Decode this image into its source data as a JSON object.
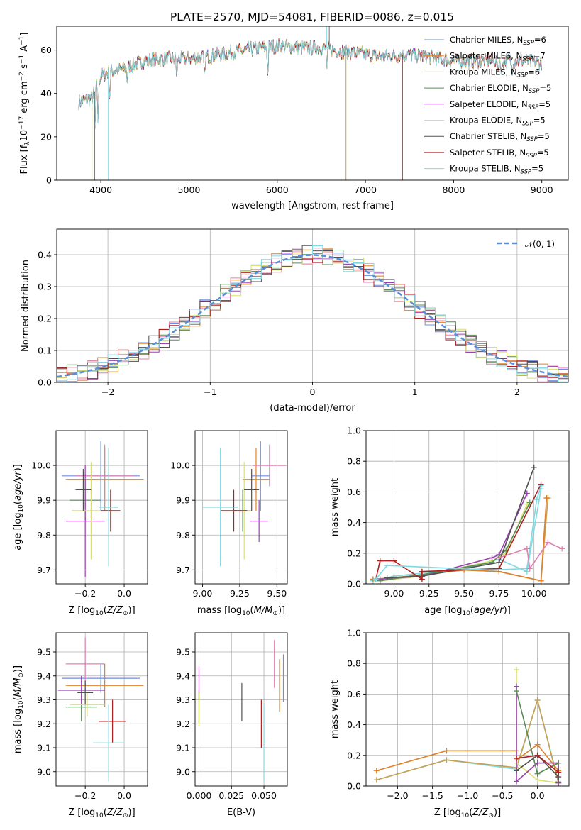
{
  "title": "PLATE=2570, MJD=54081, FIBERID=0086, z=0.015",
  "colors": [
    "#6e8fe0",
    "#e0802a",
    "#c8a050",
    "#5a8a5a",
    "#9a40b0",
    "#d8e070",
    "#505050",
    "#b02020",
    "#80d8e0"
  ],
  "legend_entries": [
    {
      "label": "Chabrier MILES, N",
      "sub": "SSP",
      "suffix": "=6"
    },
    {
      "label": "Salpeter MILES, N",
      "sub": "SSP",
      "suffix": "=7"
    },
    {
      "label": "Kroupa MILES, N",
      "sub": "SSP",
      "suffix": "=6"
    },
    {
      "label": "Chabrier ELODIE, N",
      "sub": "SSP",
      "suffix": "=5"
    },
    {
      "label": "Salpeter ELODIE, N",
      "sub": "SSP",
      "suffix": "=5"
    },
    {
      "label": "Kroupa ELODIE, N",
      "sub": "SSP",
      "suffix": "=5"
    },
    {
      "label": "Chabrier STELIB, N",
      "sub": "SSP",
      "suffix": "=5"
    },
    {
      "label": "Salpeter STELIB, N",
      "sub": "SSP",
      "suffix": "=5"
    },
    {
      "label": "Kroupa STELIB, N",
      "sub": "SSP",
      "suffix": "=5"
    }
  ],
  "chart_data": [
    {
      "type": "line",
      "panel": "spectrum",
      "xlabel": "wavelength [Angstrom, rest frame]",
      "ylabel": "Flux [f_λ10^-17 erg cm^-2 s^-1 A^-1]",
      "xlim": [
        3500,
        9300
      ],
      "ylim": [
        0,
        71
      ],
      "xticks": [
        "4000",
        "5000",
        "6000",
        "7000",
        "8000",
        "9000"
      ],
      "yticks": [
        "0",
        "20",
        "40",
        "60"
      ],
      "continuum": [
        [
          3750,
          36
        ],
        [
          3900,
          38
        ],
        [
          4000,
          48
        ],
        [
          4100,
          50
        ],
        [
          4300,
          52
        ],
        [
          4500,
          55
        ],
        [
          4700,
          56
        ],
        [
          5000,
          56
        ],
        [
          5200,
          57
        ],
        [
          5500,
          59
        ],
        [
          5800,
          61
        ],
        [
          6000,
          62
        ],
        [
          6300,
          61
        ],
        [
          6500,
          61
        ],
        [
          6800,
          59
        ],
        [
          7000,
          58
        ],
        [
          7200,
          57
        ],
        [
          7500,
          58
        ],
        [
          7700,
          57
        ],
        [
          8000,
          55
        ],
        [
          8300,
          55
        ],
        [
          8600,
          55
        ],
        [
          8800,
          55
        ],
        [
          9000,
          54
        ]
      ]
    },
    {
      "type": "line",
      "panel": "residual_histogram",
      "xlabel": "(data-model)/error",
      "ylabel": "Normed distribution",
      "xlim": [
        -2.5,
        2.5
      ],
      "ylim": [
        0,
        0.48
      ],
      "xticks": [
        "−2",
        "−1",
        "0",
        "1",
        "2"
      ],
      "yticks": [
        "0.0",
        "0.1",
        "0.2",
        "0.3",
        "0.4"
      ],
      "legend": "𝒩(0, 1)",
      "gaussian_mean": 0,
      "gaussian_sigma": 1
    },
    {
      "type": "scatter",
      "panel": "age_vs_Z",
      "xlabel": "Z [log10(Z/Z⊙)]",
      "ylabel": "age  [log10(age/yr)]",
      "xlim": [
        -0.35,
        0.12
      ],
      "ylim": [
        9.66,
        10.1
      ],
      "xticks": [
        "−0.2",
        "0.0"
      ],
      "yticks": [
        "9.7",
        "9.8",
        "9.9",
        "10.0"
      ],
      "points": [
        {
          "x": -0.12,
          "y": 9.97,
          "xerr": 0.2,
          "yerr": 0.1
        },
        {
          "x": -0.1,
          "y": 9.96,
          "xerr": 0.2,
          "yerr": 0.09
        },
        {
          "x": -0.1,
          "y": 9.97,
          "xerr": 0.15,
          "yerr": 0.09
        },
        {
          "x": -0.2,
          "y": 9.9,
          "xerr": 0.08,
          "yerr": 0.06
        },
        {
          "x": -0.2,
          "y": 9.84,
          "xerr": 0.1,
          "yerr": 0.16
        },
        {
          "x": -0.17,
          "y": 9.87,
          "xerr": 0.1,
          "yerr": 0.14
        },
        {
          "x": -0.21,
          "y": 9.93,
          "xerr": 0.04,
          "yerr": 0.06
        },
        {
          "x": -0.07,
          "y": 9.87,
          "xerr": 0.05,
          "yerr": 0.06
        },
        {
          "x": -0.08,
          "y": 9.88,
          "xerr": 0.05,
          "yerr": 0.17
        }
      ]
    },
    {
      "type": "scatter",
      "panel": "age_vs_mass",
      "xlabel": "mass [log10(M/M⊙)]",
      "ylabel": "",
      "xlim": [
        8.95,
        9.57
      ],
      "ylim": [
        9.66,
        10.1
      ],
      "xticks": [
        "9.00",
        "9.25",
        "9.50"
      ],
      "yticks": [
        "9.7",
        "9.8",
        "9.9",
        "10.0"
      ],
      "points": [
        {
          "x": 9.39,
          "y": 9.97,
          "xerr": 0.06,
          "yerr": 0.1
        },
        {
          "x": 9.36,
          "y": 9.96,
          "xerr": 0.09,
          "yerr": 0.09
        },
        {
          "x": 9.45,
          "y": 10.0,
          "xerr": 0.11,
          "yerr": 0.06
        },
        {
          "x": 9.27,
          "y": 9.87,
          "xerr": 0.06,
          "yerr": 0.06
        },
        {
          "x": 9.38,
          "y": 9.84,
          "xerr": 0.06,
          "yerr": 0.06
        },
        {
          "x": 9.28,
          "y": 9.87,
          "xerr": 0.05,
          "yerr": 0.14
        },
        {
          "x": 9.33,
          "y": 9.93,
          "xerr": 0.05,
          "yerr": 0.06
        },
        {
          "x": 9.21,
          "y": 9.87,
          "xerr": 0.09,
          "yerr": 0.06
        },
        {
          "x": 9.12,
          "y": 9.88,
          "xerr": 0.12,
          "yerr": 0.17
        }
      ]
    },
    {
      "type": "line",
      "panel": "mass_weight_vs_age",
      "xlabel": "age  [log10(age/yr)]",
      "ylabel": "mass weight",
      "xlim": [
        8.8,
        10.25
      ],
      "ylim": [
        0,
        1.0
      ],
      "xticks": [
        "9.00",
        "9.25",
        "9.50",
        "9.75",
        "10.00"
      ],
      "yticks": [
        "0.0",
        "0.2",
        "0.4",
        "0.6",
        "0.8",
        "1.0"
      ],
      "series": [
        {
          "points": [
            [
              8.85,
              0.02
            ],
            [
              9.0,
              0.05
            ],
            [
              9.5,
              0.1
            ],
            [
              9.75,
              0.16
            ],
            [
              9.95,
              0.08
            ],
            [
              10.05,
              0.62
            ]
          ]
        },
        {
          "points": [
            [
              8.85,
              0.03
            ],
            [
              9.0,
              0.04
            ],
            [
              9.5,
              0.09
            ],
            [
              9.75,
              0.08
            ],
            [
              10.05,
              0.02
            ],
            [
              10.1,
              0.56
            ],
            [
              10.1,
              0.56
            ]
          ]
        },
        {
          "points": [
            [
              8.85,
              0.03
            ],
            [
              9.0,
              0.04
            ],
            [
              9.5,
              0.09
            ],
            [
              9.75,
              0.08
            ],
            [
              10.05,
              0.02
            ],
            [
              10.09,
              0.56
            ]
          ]
        },
        {
          "points": [
            [
              8.9,
              0.02
            ],
            [
              9.2,
              0.05
            ],
            [
              9.7,
              0.15
            ],
            [
              9.8,
              0.2
            ],
            [
              9.95,
              0.52
            ]
          ]
        },
        {
          "points": [
            [
              8.9,
              0.03
            ],
            [
              9.2,
              0.05
            ],
            [
              9.7,
              0.17
            ],
            [
              9.75,
              0.19
            ],
            [
              9.95,
              0.59
            ]
          ]
        },
        {
          "points": [
            [
              8.9,
              0.02
            ],
            [
              9.2,
              0.06
            ],
            [
              9.7,
              0.14
            ],
            [
              9.8,
              0.22
            ],
            [
              9.97,
              0.53
            ]
          ]
        },
        {
          "points": [
            [
              8.95,
              0.04
            ],
            [
              9.2,
              0.05
            ],
            [
              9.75,
              0.14
            ],
            [
              10.0,
              0.76
            ]
          ]
        },
        {
          "points": [
            [
              8.87,
              0.03
            ],
            [
              8.9,
              0.15
            ],
            [
              9.0,
              0.15
            ],
            [
              9.2,
              0.03
            ],
            [
              9.2,
              0.08
            ],
            [
              9.75,
              0.1
            ],
            [
              10.05,
              0.65
            ]
          ]
        },
        {
          "points": [
            [
              8.87,
              0.03
            ],
            [
              8.95,
              0.12
            ],
            [
              9.7,
              0.09
            ],
            [
              9.95,
              0.1
            ],
            [
              10.02,
              0.55
            ],
            [
              10.05,
              0.64
            ]
          ]
        },
        {
          "points": [
            [
              9.75,
              0.17
            ],
            [
              9.95,
              0.23
            ],
            [
              9.97,
              0.1
            ],
            [
              10.1,
              0.27
            ],
            [
              10.2,
              0.23
            ]
          ]
        }
      ]
    },
    {
      "type": "scatter",
      "panel": "mass_vs_Z",
      "xlabel": "Z [log10(Z/Z⊙)]",
      "ylabel": "mass [log10(M/M⊙)]",
      "xlim": [
        -0.35,
        0.12
      ],
      "ylim": [
        8.94,
        9.58
      ],
      "xticks": [
        "−0.2",
        "0.0"
      ],
      "yticks": [
        "9.0",
        "9.1",
        "9.2",
        "9.3",
        "9.4",
        "9.5"
      ],
      "points": [
        {
          "x": -0.12,
          "y": 9.39,
          "xerr": 0.2,
          "yerr": 0.06
        },
        {
          "x": -0.1,
          "y": 9.36,
          "xerr": 0.2,
          "yerr": 0.09
        },
        {
          "x": -0.2,
          "y": 9.45,
          "xerr": 0.1,
          "yerr": 0.11
        },
        {
          "x": -0.22,
          "y": 9.27,
          "xerr": 0.08,
          "yerr": 0.06
        },
        {
          "x": -0.22,
          "y": 9.34,
          "xerr": 0.12,
          "yerr": 0.06
        },
        {
          "x": -0.19,
          "y": 9.28,
          "xerr": 0.09,
          "yerr": 0.05
        },
        {
          "x": -0.2,
          "y": 9.33,
          "xerr": 0.04,
          "yerr": 0.05
        },
        {
          "x": -0.06,
          "y": 9.21,
          "xerr": 0.07,
          "yerr": 0.09
        },
        {
          "x": -0.08,
          "y": 9.12,
          "xerr": 0.08,
          "yerr": 0.16
        }
      ]
    },
    {
      "type": "scatter",
      "panel": "mass_vs_EBV",
      "xlabel": "E(B-V)",
      "ylabel": "",
      "xlim": [
        -0.003,
        0.068
      ],
      "ylim": [
        8.94,
        9.58
      ],
      "xticks": [
        "0.000",
        "0.025",
        "0.050"
      ],
      "yticks": [
        "9.0",
        "9.1",
        "9.2",
        "9.3",
        "9.4",
        "9.5"
      ],
      "points": [
        {
          "x": 0.065,
          "y": 9.39,
          "yerr": 0.1
        },
        {
          "x": 0.062,
          "y": 9.36,
          "yerr": 0.11
        },
        {
          "x": 0.058,
          "y": 9.45,
          "yerr": 0.1
        },
        {
          "x": 0.0,
          "y": 9.27,
          "yerr": 0.07
        },
        {
          "x": 0.0,
          "y": 9.37,
          "yerr": 0.07
        },
        {
          "x": 0.0,
          "y": 9.26,
          "yerr": 0.07
        },
        {
          "x": 0.033,
          "y": 9.29,
          "yerr": 0.08
        },
        {
          "x": 0.048,
          "y": 9.2,
          "yerr": 0.1
        },
        {
          "x": 0.05,
          "y": 9.12,
          "yerr": 0.16
        }
      ]
    },
    {
      "type": "line",
      "panel": "mass_weight_vs_Z",
      "xlabel": "Z [log10(Z/Z⊙)]",
      "ylabel": "mass weight",
      "xlim": [
        -2.45,
        0.45
      ],
      "ylim": [
        0,
        1.0
      ],
      "xticks": [
        "−2.0",
        "−1.5",
        "−1.0",
        "−0.5",
        "0.0"
      ],
      "yticks": [
        "0.0",
        "0.2",
        "0.4",
        "0.6",
        "0.8",
        "1.0"
      ],
      "series": [
        {
          "points": [
            [
              -2.3,
              0.04
            ],
            [
              -1.3,
              0.17
            ],
            [
              -0.3,
              0.11
            ],
            [
              0.0,
              0.56
            ],
            [
              0.3,
              0.03
            ]
          ]
        },
        {
          "points": [
            [
              -2.3,
              0.04
            ],
            [
              -1.3,
              0.17
            ],
            [
              -0.3,
              0.12
            ],
            [
              0.0,
              0.56
            ],
            [
              0.3,
              0.02
            ]
          ]
        },
        {
          "points": [
            [
              -2.3,
              0.1
            ],
            [
              -1.3,
              0.23
            ],
            [
              -0.3,
              0.23
            ],
            [
              -0.3,
              0.17
            ],
            [
              0.0,
              0.27
            ],
            [
              0.3,
              0.1
            ]
          ]
        },
        {
          "points": [
            [
              -0.3,
              0.76
            ],
            [
              -0.3,
              0.15
            ],
            [
              0.0,
              0.04
            ],
            [
              0.3,
              0.02
            ]
          ]
        },
        {
          "points": [
            [
              -0.3,
              0.65
            ],
            [
              -0.3,
              0.03
            ],
            [
              0.0,
              0.15
            ],
            [
              0.3,
              0.15
            ],
            [
              0.3,
              0.02
            ]
          ]
        },
        {
          "points": [
            [
              -0.3,
              0.62
            ],
            [
              0.0,
              0.08
            ],
            [
              0.3,
              0.15
            ]
          ]
        },
        {
          "points": [
            [
              -0.3,
              0.1
            ],
            [
              0.0,
              0.2
            ],
            [
              0.3,
              0.06
            ]
          ]
        },
        {
          "points": [
            [
              -0.3,
              0.18
            ],
            [
              0.0,
              0.2
            ],
            [
              0.3,
              0.09
            ]
          ]
        }
      ]
    }
  ]
}
